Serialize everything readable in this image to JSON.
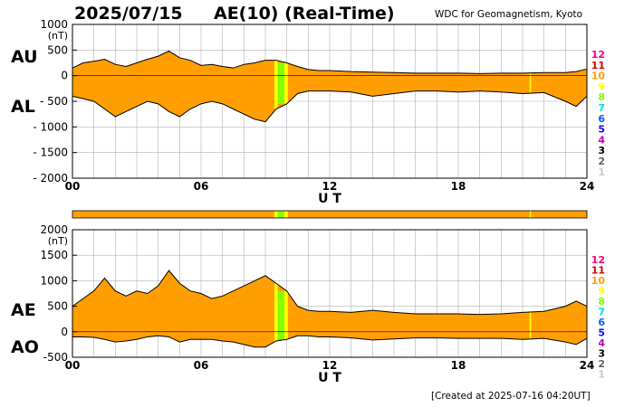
{
  "header": {
    "date": "2025/07/15",
    "title": "AE(10) (Real-Time)",
    "org": "WDC for Geomagnetism, Kyoto",
    "created": "[Created at 2025-07-16 04:20UT]"
  },
  "colors": {
    "fill": "#ff9e00",
    "line": "#000000",
    "grid": "#b0b0b0",
    "station_bar": "#ff9e00"
  },
  "station_count_scale": [
    {
      "n": "12",
      "color": "#ff0080"
    },
    {
      "n": "11",
      "color": "#e00000"
    },
    {
      "n": "10",
      "color": "#ff9e00"
    },
    {
      "n": "9",
      "color": "#ffff00"
    },
    {
      "n": "8",
      "color": "#80ff00"
    },
    {
      "n": "7",
      "color": "#00e0e0"
    },
    {
      "n": "6",
      "color": "#0060ff"
    },
    {
      "n": "5",
      "color": "#2000ff"
    },
    {
      "n": "4",
      "color": "#c000c0"
    },
    {
      "n": "3",
      "color": "#000000"
    },
    {
      "n": "2",
      "color": "#606060"
    },
    {
      "n": "1",
      "color": "#c8c8c8"
    }
  ],
  "station_bands": [
    {
      "from": 9.42,
      "to": 9.58,
      "color": "#ffff00"
    },
    {
      "from": 9.58,
      "to": 9.88,
      "color": "#80ff00"
    },
    {
      "from": 9.88,
      "to": 10.05,
      "color": "#ffff00"
    },
    {
      "from": 21.33,
      "to": 21.4,
      "color": "#ffff00"
    }
  ],
  "chart_data": [
    {
      "type": "area",
      "panel": "AU/AL",
      "unit": "(nT)",
      "xlabel": "U T",
      "xticks": [
        "00",
        "06",
        "12",
        "18",
        "24"
      ],
      "xlim": [
        0,
        24
      ],
      "ylim": [
        -2000,
        1000
      ],
      "yticks": [
        "1000",
        "500",
        "0",
        "- 500",
        "- 1000",
        "- 1500",
        "- 2000"
      ],
      "series": [
        {
          "name": "AU",
          "x": [
            0,
            0.5,
            1,
            1.5,
            2,
            2.5,
            3,
            3.5,
            4,
            4.5,
            5,
            5.5,
            6,
            6.5,
            7,
            7.5,
            8,
            8.5,
            9,
            9.5,
            10,
            10.5,
            11,
            11.5,
            12,
            13,
            14,
            15,
            16,
            17,
            18,
            19,
            20,
            21,
            22,
            23,
            23.5,
            24
          ],
          "y": [
            150,
            250,
            280,
            320,
            220,
            180,
            250,
            320,
            380,
            480,
            350,
            300,
            200,
            220,
            180,
            150,
            220,
            250,
            300,
            300,
            250,
            180,
            120,
            100,
            100,
            80,
            70,
            60,
            50,
            50,
            50,
            40,
            50,
            50,
            60,
            60,
            80,
            130
          ]
        },
        {
          "name": "AL",
          "x": [
            0,
            0.5,
            1,
            1.5,
            2,
            2.5,
            3,
            3.5,
            4,
            4.5,
            5,
            5.5,
            6,
            6.5,
            7,
            7.5,
            8,
            8.5,
            9,
            9.5,
            10,
            10.5,
            11,
            11.5,
            12,
            13,
            14,
            15,
            16,
            17,
            18,
            19,
            20,
            21,
            22,
            23,
            23.5,
            24
          ],
          "y": [
            -400,
            -450,
            -500,
            -650,
            -800,
            -700,
            -600,
            -500,
            -550,
            -700,
            -800,
            -650,
            -550,
            -500,
            -550,
            -650,
            -750,
            -850,
            -900,
            -650,
            -550,
            -350,
            -300,
            -300,
            -300,
            -320,
            -400,
            -350,
            -300,
            -300,
            -320,
            -300,
            -320,
            -350,
            -330,
            -500,
            -600,
            -400
          ]
        }
      ]
    },
    {
      "type": "area",
      "panel": "AE/AO",
      "unit": "(nT)",
      "xlabel": "U T",
      "xticks": [
        "00",
        "06",
        "12",
        "18",
        "24"
      ],
      "xlim": [
        0,
        24
      ],
      "ylim": [
        -500,
        2000
      ],
      "yticks": [
        "2000",
        "1500",
        "1000",
        "500",
        "0",
        "-500"
      ],
      "series": [
        {
          "name": "AE",
          "x": [
            0,
            0.5,
            1,
            1.5,
            2,
            2.5,
            3,
            3.5,
            4,
            4.5,
            5,
            5.5,
            6,
            6.5,
            7,
            7.5,
            8,
            8.5,
            9,
            9.5,
            10,
            10.5,
            11,
            11.5,
            12,
            13,
            14,
            15,
            16,
            17,
            18,
            19,
            20,
            21,
            22,
            23,
            23.5,
            24
          ],
          "y": [
            500,
            650,
            800,
            1050,
            800,
            700,
            800,
            750,
            900,
            1200,
            950,
            800,
            750,
            650,
            700,
            800,
            900,
            1000,
            1100,
            950,
            800,
            500,
            420,
            400,
            400,
            380,
            420,
            380,
            350,
            350,
            350,
            340,
            350,
            380,
            400,
            500,
            600,
            500
          ]
        },
        {
          "name": "AO",
          "x": [
            0,
            0.5,
            1,
            1.5,
            2,
            2.5,
            3,
            3.5,
            4,
            4.5,
            5,
            5.5,
            6,
            6.5,
            7,
            7.5,
            8,
            8.5,
            9,
            9.5,
            10,
            10.5,
            11,
            11.5,
            12,
            13,
            14,
            15,
            16,
            17,
            18,
            19,
            20,
            21,
            22,
            23,
            23.5,
            24
          ],
          "y": [
            -100,
            -100,
            -110,
            -150,
            -200,
            -180,
            -150,
            -100,
            -80,
            -100,
            -200,
            -150,
            -150,
            -150,
            -180,
            -200,
            -250,
            -300,
            -300,
            -180,
            -150,
            -80,
            -80,
            -100,
            -100,
            -120,
            -160,
            -140,
            -120,
            -120,
            -130,
            -130,
            -130,
            -150,
            -130,
            -200,
            -250,
            -130
          ]
        }
      ]
    }
  ]
}
